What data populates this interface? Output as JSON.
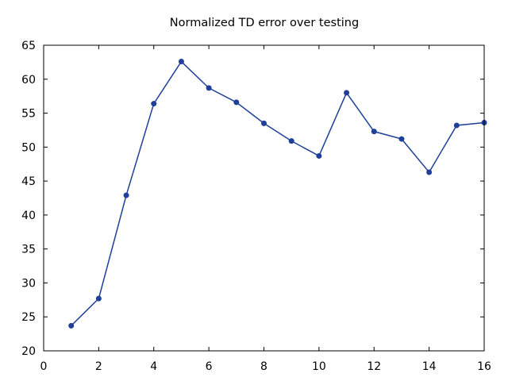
{
  "chart_data": {
    "type": "line",
    "title": "Normalized TD error over testing",
    "xlabel": "",
    "ylabel": "",
    "xlim": [
      0,
      16
    ],
    "ylim": [
      20,
      65
    ],
    "xticks": [
      0,
      2,
      4,
      6,
      8,
      10,
      12,
      14,
      16
    ],
    "yticks": [
      20,
      25,
      30,
      35,
      40,
      45,
      50,
      55,
      60,
      65
    ],
    "grid": false,
    "color": "#1f3f99",
    "series": [
      {
        "x": [
          1,
          2,
          3,
          4,
          5,
          6,
          7,
          8,
          9,
          10,
          11,
          12,
          13,
          14,
          15,
          16
        ],
        "y": [
          23.7,
          27.7,
          42.9,
          56.4,
          62.6,
          58.7,
          56.6,
          53.5,
          50.9,
          48.7,
          58.0,
          52.3,
          51.2,
          46.3,
          53.2,
          53.6
        ]
      }
    ]
  }
}
